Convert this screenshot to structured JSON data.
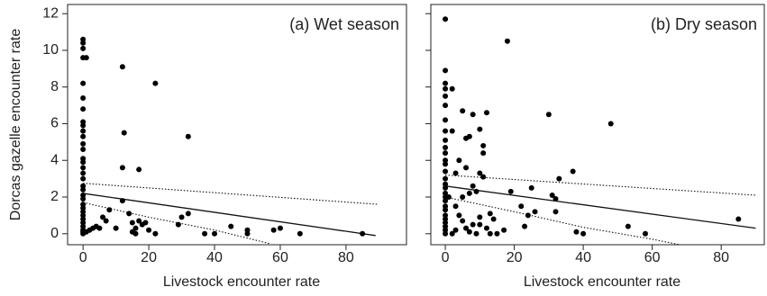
{
  "chart_data": [
    {
      "type": "scatter",
      "title": "(a) Wet season",
      "xlabel": "Livestock encounter rate",
      "ylabel": "Dorcas gazelle encounter rate",
      "xlim": [
        -4.7,
        98.4
      ],
      "ylim": [
        -0.6,
        12.5
      ],
      "xticks": [
        0,
        20,
        40,
        60,
        80
      ],
      "yticks": [
        0,
        2,
        4,
        6,
        8,
        10,
        12
      ],
      "show_ytick_labels": true,
      "color": "#000000",
      "x": [
        0,
        0,
        0,
        0,
        0,
        0,
        0,
        0,
        0,
        0,
        0,
        0,
        0,
        0,
        0,
        0,
        0,
        0,
        0,
        0,
        0,
        0,
        0,
        0,
        0,
        0,
        0,
        0,
        0,
        0,
        0,
        0,
        1,
        12,
        22,
        12.5,
        32,
        12,
        17,
        12,
        3,
        4,
        5,
        6,
        7,
        8,
        10,
        14,
        15,
        16,
        17,
        18,
        19,
        20,
        22,
        29,
        30,
        32,
        37,
        40,
        45,
        50,
        50,
        58,
        60,
        66,
        85,
        2,
        1,
        15,
        16
      ],
      "values": [
        10.6,
        10.4,
        10.1,
        9.6,
        8.2,
        7.4,
        6.8,
        6.1,
        5.9,
        5.6,
        5.3,
        4.9,
        4.6,
        4.1,
        3.9,
        3.6,
        3.3,
        3.0,
        2.6,
        2.4,
        2.1,
        1.9,
        1.6,
        1.4,
        1.2,
        1.0,
        0.8,
        0.6,
        0.4,
        0.2,
        0.1,
        0,
        9.6,
        9.1,
        8.2,
        5.5,
        5.3,
        3.6,
        3.5,
        1.8,
        0.3,
        0.4,
        0.3,
        0.9,
        0.7,
        1.3,
        0.3,
        1.1,
        0.1,
        0,
        0.7,
        0.5,
        0.6,
        0.2,
        0,
        0.5,
        0.9,
        1.1,
        0,
        0,
        0.4,
        0.2,
        0,
        0.2,
        0.3,
        0,
        0,
        0.2,
        0.1,
        0.6,
        0.3
      ],
      "lines": [
        {
          "style": "solid",
          "x": [
            0,
            89
          ],
          "values": [
            2.2,
            -0.1
          ]
        },
        {
          "style": "dotted",
          "x": [
            0,
            90
          ],
          "values": [
            2.75,
            1.6
          ]
        },
        {
          "style": "dotted",
          "x": [
            0,
            20,
            40,
            57
          ],
          "values": [
            1.7,
            0.9,
            0.2,
            -0.55
          ]
        }
      ]
    },
    {
      "type": "scatter",
      "title": "(b) Dry season",
      "xlabel": "Livestock encounter rate",
      "xlim": [
        -4.2,
        92.5
      ],
      "ylim": [
        -0.6,
        12.5
      ],
      "xticks": [
        0,
        20,
        40,
        60,
        80
      ],
      "yticks": [
        0,
        2,
        4,
        6,
        8,
        10,
        12
      ],
      "show_ytick_labels": false,
      "color": "#000000",
      "x": [
        0,
        0,
        0,
        0,
        0,
        0,
        0,
        0,
        0,
        0,
        0,
        0,
        0,
        0,
        0,
        0,
        0,
        0,
        0,
        0,
        0,
        0,
        0,
        0,
        0,
        0,
        0,
        0,
        2,
        18,
        30,
        48,
        37,
        2,
        5,
        8,
        12,
        6,
        7,
        10,
        11,
        11,
        4,
        6,
        3,
        10,
        11,
        8,
        9,
        19,
        25,
        33,
        31,
        32,
        22,
        24,
        26,
        32,
        1,
        3,
        4,
        5,
        6,
        7,
        8,
        9,
        10,
        12,
        13,
        15,
        17,
        23,
        38,
        40,
        53,
        58,
        85,
        2,
        3,
        10,
        13,
        14,
        5,
        7
      ],
      "values": [
        11.7,
        8.9,
        8.2,
        7.9,
        7.5,
        7.0,
        6.2,
        5.6,
        5.1,
        4.7,
        4.4,
        4.0,
        3.8,
        3.4,
        3.0,
        2.7,
        2.5,
        2.2,
        2.0,
        1.8,
        1.5,
        1.3,
        1.0,
        0.8,
        0.6,
        0.4,
        0.2,
        0,
        7.9,
        10.5,
        6.5,
        6.0,
        3.4,
        5.6,
        6.7,
        6.5,
        6.6,
        5.2,
        5.3,
        5.7,
        4.8,
        4.4,
        4.0,
        3.6,
        3.3,
        3.3,
        3.1,
        2.6,
        2.3,
        2.3,
        2.5,
        3.0,
        2.1,
        1.9,
        1.5,
        1.0,
        1.2,
        1.2,
        2.0,
        1.5,
        1.0,
        0.7,
        0.3,
        0.1,
        0.5,
        0,
        0.9,
        0.3,
        0,
        0,
        0.2,
        0.4,
        0.1,
        0,
        0.4,
        0,
        0.8,
        0,
        0.2,
        0.5,
        1.1,
        0.8,
        2.0,
        2.2
      ],
      "lines": [
        {
          "style": "solid",
          "x": [
            0,
            90
          ],
          "values": [
            2.6,
            0.3
          ]
        },
        {
          "style": "dotted",
          "x": [
            0,
            90
          ],
          "values": [
            3.2,
            2.1
          ]
        },
        {
          "style": "dotted",
          "x": [
            0,
            20,
            40,
            60,
            68
          ],
          "values": [
            2.0,
            1.2,
            0.35,
            -0.3,
            -0.6
          ]
        }
      ]
    }
  ]
}
